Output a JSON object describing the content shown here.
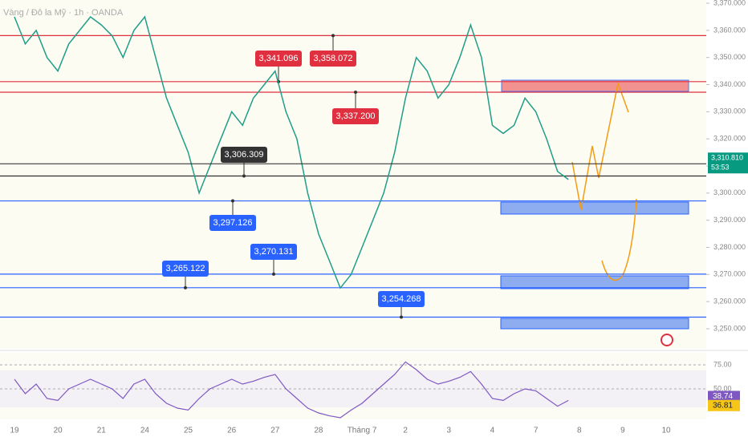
{
  "chart_data": {
    "type": "line",
    "title": "Vàng / Đô la Mỹ · 1h · OANDA",
    "categories": [
      "19",
      null,
      null,
      null,
      "20",
      null,
      null,
      null,
      "21",
      null,
      null,
      null,
      "24",
      null,
      null,
      null,
      "25",
      null,
      null,
      null,
      "26",
      null,
      null,
      null,
      "27",
      null,
      null,
      null,
      "28",
      null,
      null,
      null,
      "Tháng 7",
      null,
      null,
      null,
      "2",
      null,
      null,
      null,
      "3",
      null,
      null,
      null,
      "4",
      null,
      null,
      null,
      "7",
      null,
      null,
      null,
      "8",
      null,
      null,
      null,
      "9",
      null,
      null,
      null,
      "10"
    ],
    "values": [
      3365,
      3355,
      3360,
      3350,
      3345,
      3355,
      3360,
      3365,
      3362,
      3358,
      3350,
      3360,
      3365,
      3350,
      3335,
      3325,
      3315,
      3300,
      3310,
      3320,
      3330,
      3325,
      3335,
      3340,
      3345,
      3330,
      3320,
      3300,
      3285,
      3275,
      3265,
      3270,
      3280,
      3290,
      3300,
      3315,
      3335,
      3350,
      3345,
      3335,
      3340,
      3350,
      3362,
      3350,
      3325,
      3322,
      3325,
      3335,
      3330,
      3320,
      3308,
      3305,
      null,
      null,
      null,
      null,
      null,
      null,
      null,
      null,
      null
    ],
    "color": "#1f9e89",
    "ylim": [
      3242.6,
      3371.2
    ],
    "yticks": [
      {
        "value": 3250,
        "label": "3,250.000"
      },
      {
        "value": 3260,
        "label": "3,260.000"
      },
      {
        "value": 3270,
        "label": "3,270.000"
      },
      {
        "value": 3280,
        "label": "3,280.000"
      },
      {
        "value": 3290,
        "label": "3,290.000"
      },
      {
        "value": 3300,
        "label": "3,300.000"
      },
      {
        "value": 3310,
        "label": "3,310.000"
      },
      {
        "value": 3320,
        "label": "3,320.000"
      },
      {
        "value": 3330,
        "label": "3,330.000"
      },
      {
        "value": 3340,
        "label": "3,340.000"
      },
      {
        "value": 3350,
        "label": "3,350.000"
      },
      {
        "value": 3360,
        "label": "3,360.000"
      },
      {
        "value": 3370,
        "label": "3,370.000"
      }
    ],
    "levels": [
      {
        "value": 3358.072,
        "label": "3,358.072",
        "color": "#e0303f"
      },
      {
        "value": 3341.096,
        "label": "3,341.096",
        "color": "#e0303f"
      },
      {
        "value": 3337.2,
        "label": "3,337.200",
        "color": "#e0303f"
      },
      {
        "value": 3306.309,
        "label": "3,306.309",
        "color": "#333333"
      },
      {
        "value": 3297.126,
        "label": "3,297.126",
        "color": "#2962ff"
      },
      {
        "value": 3270.131,
        "label": "3,270.131",
        "color": "#2962ff"
      },
      {
        "value": 3265.122,
        "label": "3,265.122",
        "color": "#2962ff"
      },
      {
        "value": 3254.268,
        "label": "3,254.268",
        "color": "#2962ff"
      }
    ],
    "current": {
      "value": 3310.81,
      "label": "3,310.810",
      "timer": "53:53",
      "color": "#089981"
    },
    "rsi": {
      "values": [
        60,
        45,
        55,
        40,
        38,
        50,
        55,
        60,
        55,
        50,
        40,
        55,
        60,
        45,
        35,
        30,
        28,
        40,
        50,
        55,
        60,
        55,
        58,
        62,
        65,
        50,
        40,
        30,
        25,
        22,
        20,
        28,
        35,
        45,
        55,
        65,
        78,
        70,
        60,
        55,
        58,
        62,
        68,
        55,
        40,
        38,
        45,
        50,
        48,
        40,
        32,
        38
      ],
      "color": "#7e57c2",
      "ylim": [
        20.8,
        87.5
      ],
      "yticks": [
        {
          "value": 75,
          "label": "75.00"
        },
        {
          "value": 50,
          "label": "50.00"
        }
      ],
      "last": [
        {
          "value": 38.74,
          "label": "38.74",
          "color": "#7e57c2"
        },
        {
          "value": 36.81,
          "label": "36.81",
          "color": "#f5c518"
        }
      ]
    }
  }
}
